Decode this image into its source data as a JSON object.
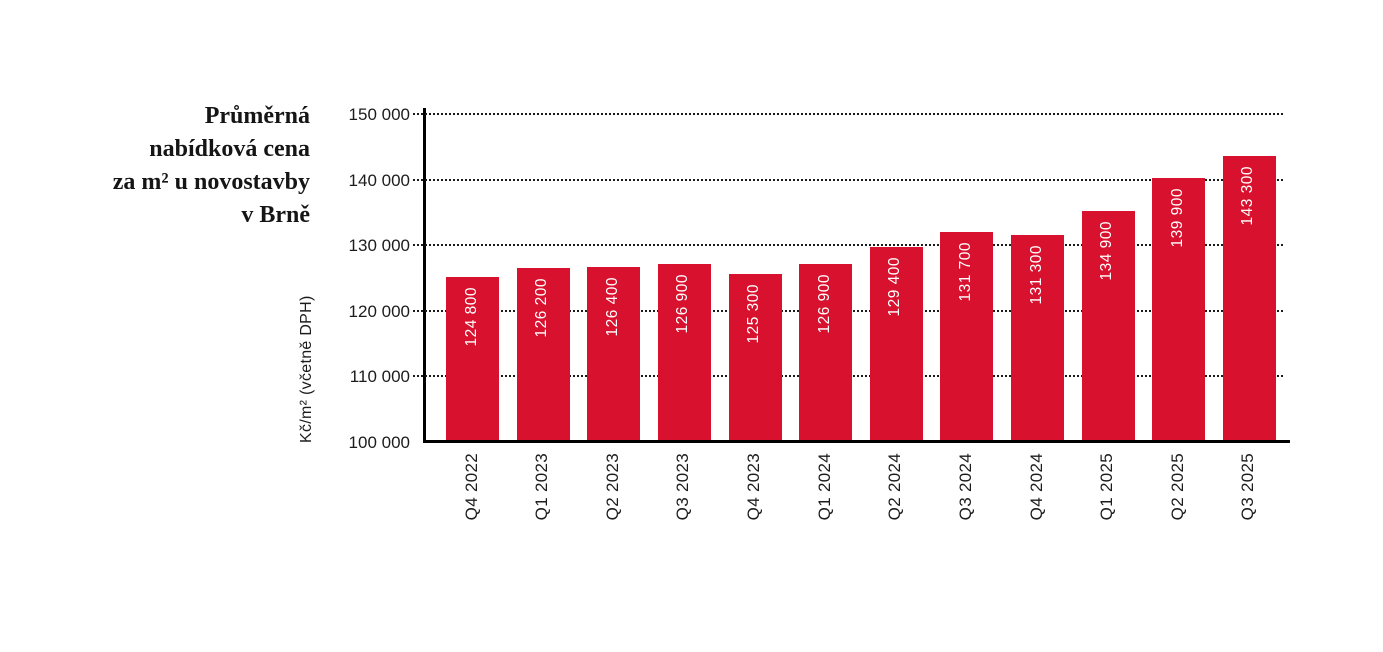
{
  "header": {
    "title_lines": [
      "Průměrná",
      "nabídková cena",
      "za m² u novostavby",
      "v Brně"
    ]
  },
  "chart_data": {
    "type": "bar",
    "title": "Průměrná nabídková cena za m² u novostavby v Brně",
    "ylabel": "Kč/m² (včetně DPH)",
    "xlabel": "",
    "categories": [
      "Q4 2022",
      "Q1 2023",
      "Q2 2023",
      "Q3 2023",
      "Q4 2023",
      "Q1 2024",
      "Q2 2024",
      "Q3 2024",
      "Q4 2024",
      "Q1 2025",
      "Q2 2025",
      "Q3 2025"
    ],
    "values": [
      124800,
      126200,
      126400,
      126900,
      125300,
      126900,
      129400,
      131700,
      131300,
      134900,
      139900,
      143300
    ],
    "value_labels": [
      "124 800",
      "126 200",
      "126 400",
      "126 900",
      "125 300",
      "126 900",
      "129 400",
      "131 700",
      "131 300",
      "134 900",
      "139 900",
      "143 300"
    ],
    "y_ticks": [
      {
        "value": 100000,
        "label": "100 000"
      },
      {
        "value": 110000,
        "label": "110 000"
      },
      {
        "value": 120000,
        "label": "120 000"
      },
      {
        "value": 130000,
        "label": "130 000"
      },
      {
        "value": 140000,
        "label": "140 000"
      },
      {
        "value": 150000,
        "label": "150 000"
      }
    ],
    "ylim": [
      100000,
      150000
    ],
    "grid": "horizontal-dotted",
    "legend": "none",
    "bar_color": "#d8112e",
    "value_label_color": "#ffffff",
    "axis_color": "#000000",
    "text_color": "#1c1c1c"
  }
}
